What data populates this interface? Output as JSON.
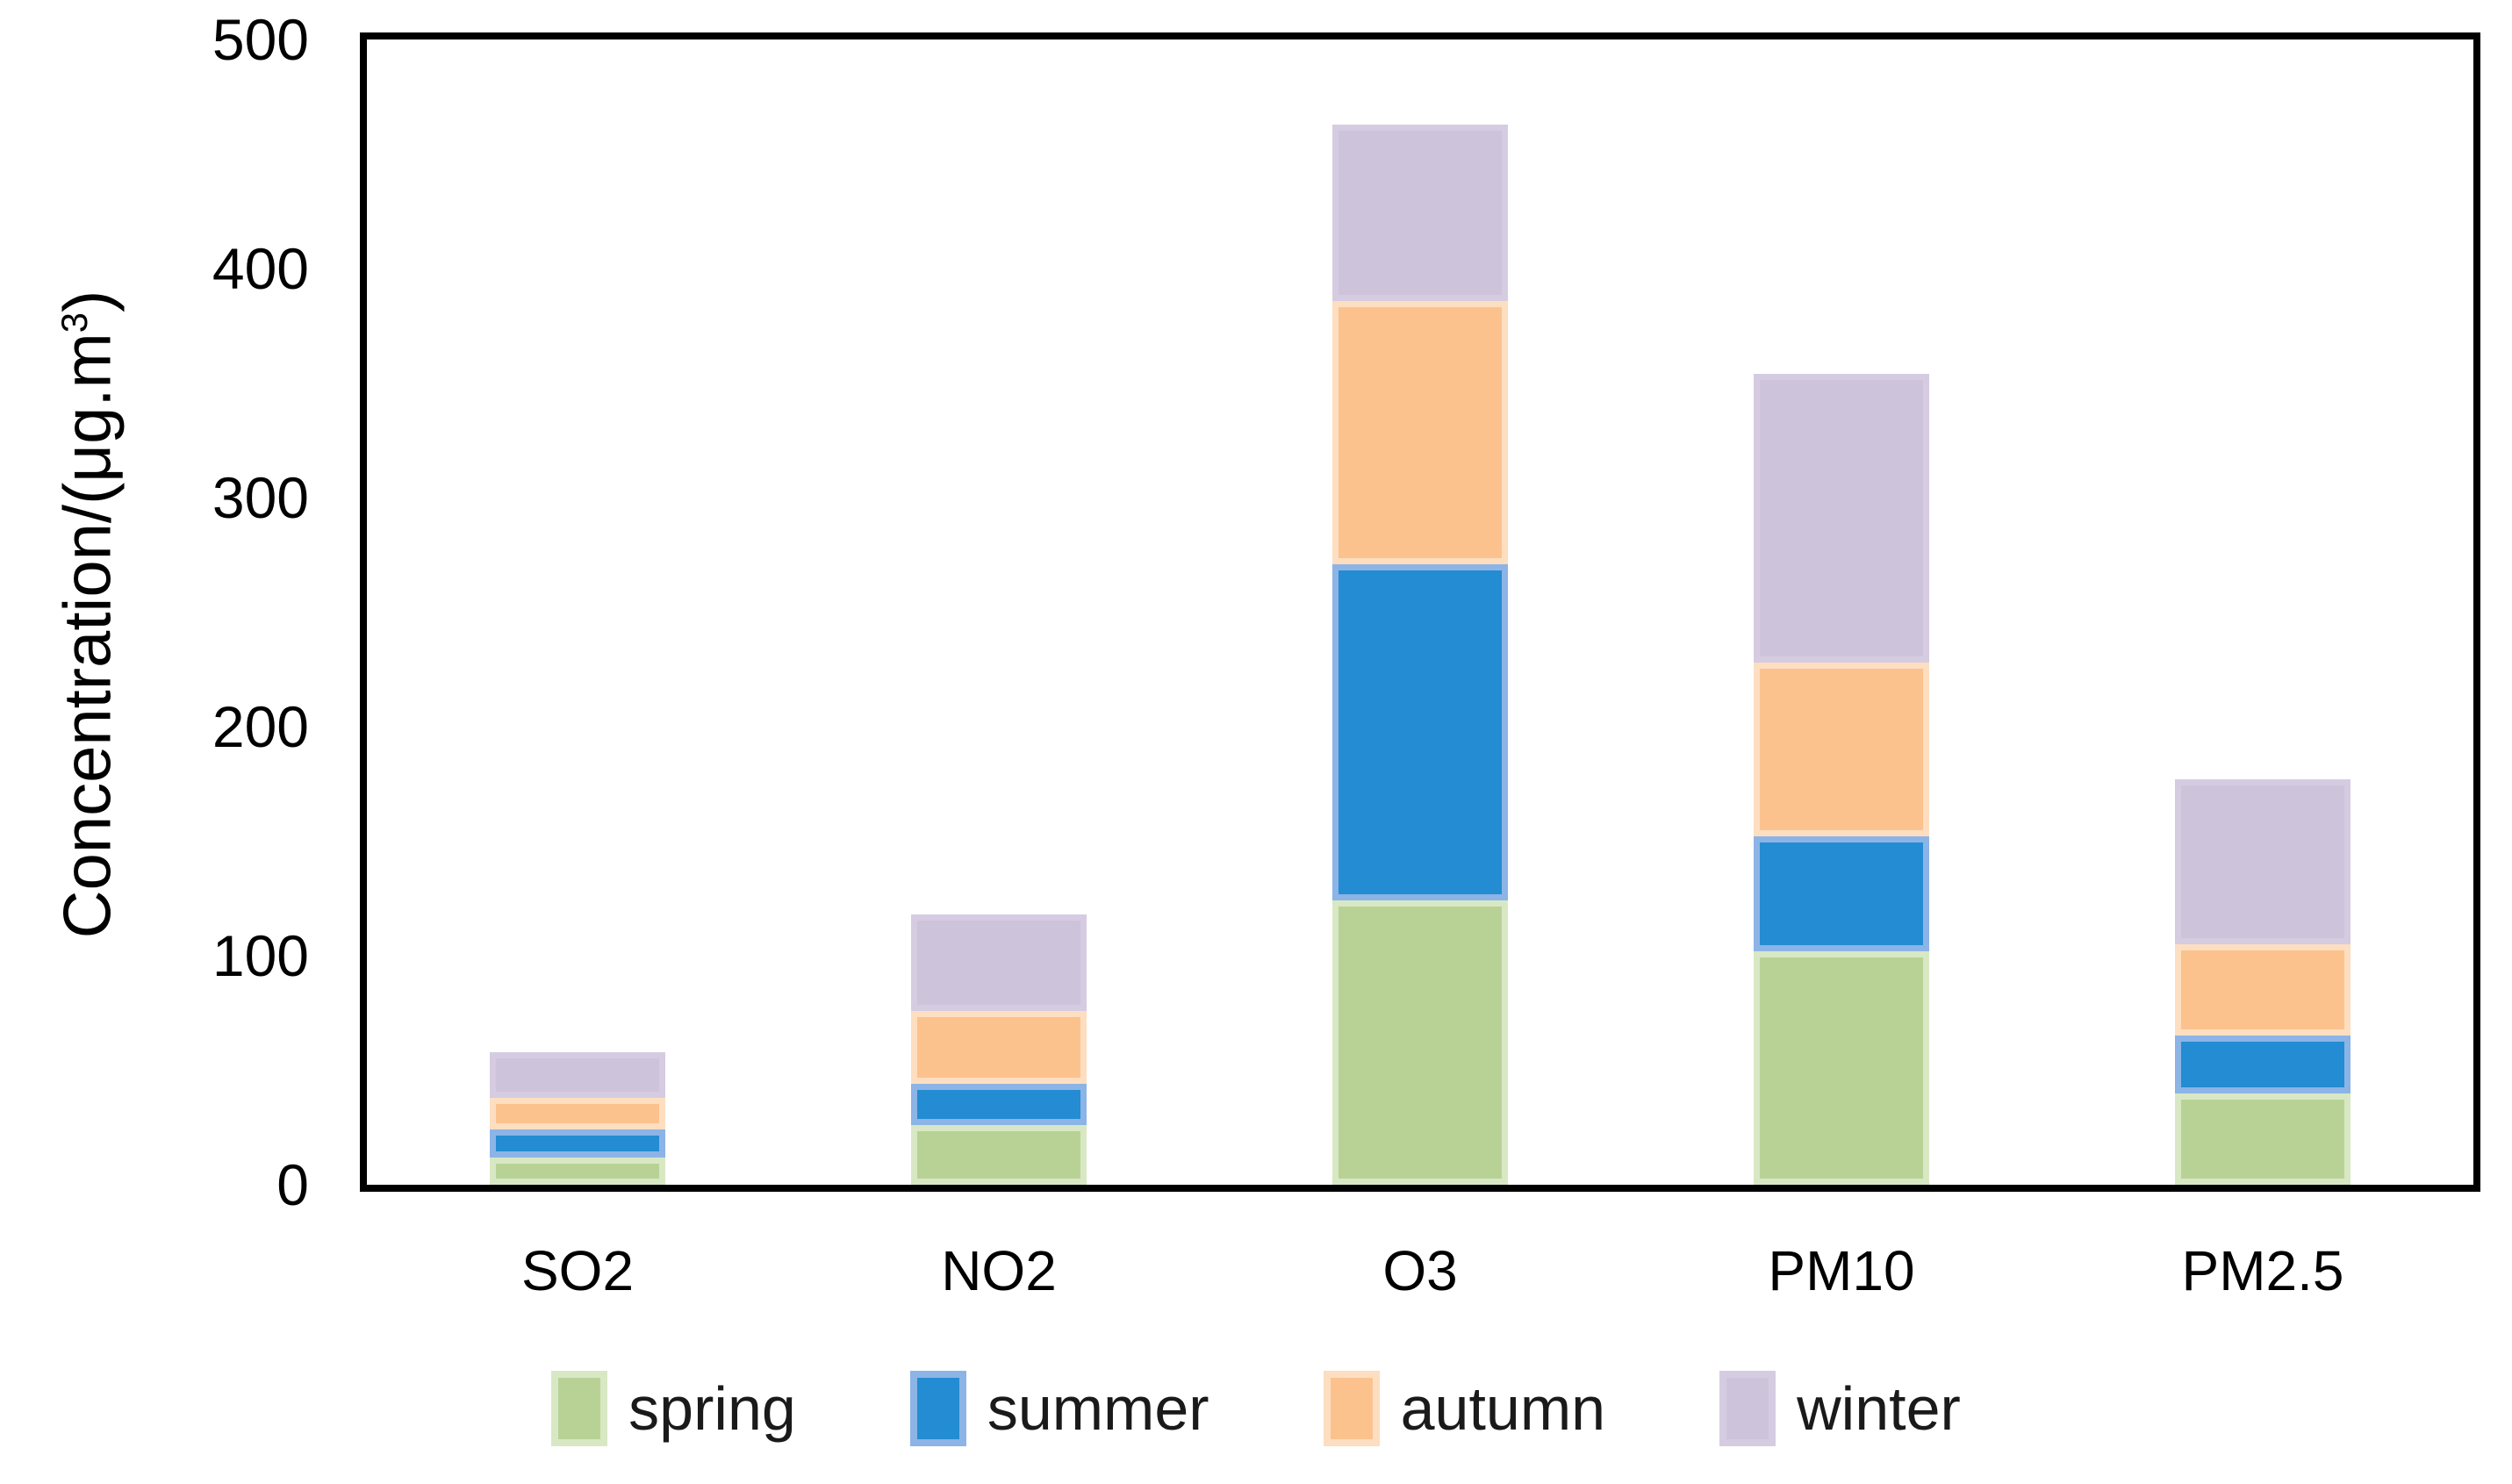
{
  "chart_data": {
    "type": "bar",
    "stacked": true,
    "categories": [
      "SO2",
      "NO2",
      "O3",
      "PM10",
      "PM2.5"
    ],
    "series": [
      {
        "name": "spring",
        "color": "#b8d296",
        "border_color": "#d8e8c4",
        "values": [
          12,
          26,
          124,
          102,
          40
        ]
      },
      {
        "name": "summer",
        "color": "#238cd2",
        "border_color": "#8cb4e6",
        "values": [
          12,
          18,
          147,
          50,
          25
        ]
      },
      {
        "name": "autumn",
        "color": "#fcc28e",
        "border_color": "#fddec0",
        "values": [
          14,
          32,
          115,
          76,
          40
        ]
      },
      {
        "name": "winter",
        "color": "#cdc4db",
        "border_color": "#d5cce2",
        "values": [
          20,
          42,
          77,
          126,
          72
        ]
      }
    ],
    "xlabel": "",
    "ylabel": "Concentration/(μg.m³)",
    "yticks": [
      0,
      100,
      200,
      300,
      400,
      500
    ],
    "ylim": [
      0,
      500
    ],
    "grid": false,
    "legend_position": "bottom",
    "axis_color": "#000000",
    "background_color": "#ffffff"
  }
}
